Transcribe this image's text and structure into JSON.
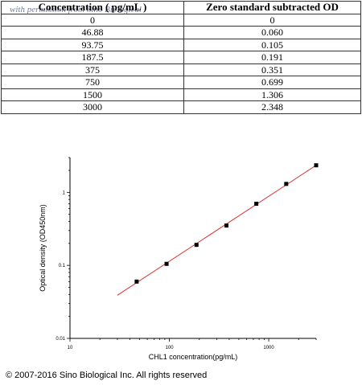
{
  "table": {
    "headers": [
      "Concentration ( pg/mL )",
      "Zero standard subtracted OD"
    ],
    "watermark": "with permission from Sino Biological",
    "rows": [
      [
        "0",
        "0"
      ],
      [
        "46.88",
        "0.060"
      ],
      [
        "93.75",
        "0.105"
      ],
      [
        "187.5",
        "0.191"
      ],
      [
        "375",
        "0.351"
      ],
      [
        "750",
        "0.699"
      ],
      [
        "1500",
        "1.306"
      ],
      [
        "3000",
        "2.348"
      ]
    ]
  },
  "chart_data": {
    "type": "scatter",
    "xlabel": "CHL1 concentration(pg/mL)",
    "ylabel": "Optical density  (OD450nm)",
    "xscale": "log",
    "yscale": "log",
    "xlim": [
      10,
      3000
    ],
    "ylim": [
      0.01,
      3
    ],
    "xticks": [
      "10",
      "100",
      "1000"
    ],
    "yticks": [
      "0.01",
      "0.1",
      "1"
    ],
    "grid": false,
    "x": [
      46.88,
      93.75,
      187.5,
      375,
      750,
      1500,
      3000
    ],
    "y": [
      0.06,
      0.105,
      0.191,
      0.351,
      0.699,
      1.306,
      2.348
    ],
    "fit_line": {
      "x": [
        30,
        3000
      ],
      "y": [
        0.039,
        2.35
      ],
      "color": "#e03030"
    },
    "marker_color": "#000000"
  },
  "copyright": "© 2007-2016 Sino Biological Inc. All rights reserved"
}
